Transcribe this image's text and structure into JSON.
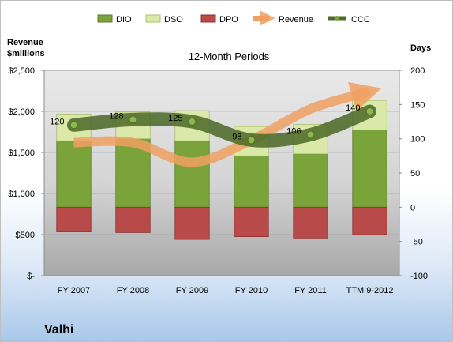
{
  "company_name": "Valhi",
  "chart_data": {
    "type": "bar",
    "title": "12-Month Periods",
    "categories": [
      "FY 2007",
      "FY 2008",
      "FY 2009",
      "FY 2010",
      "FY 2011",
      "TTM 9-2012"
    ],
    "left_axis": {
      "label_line1": "Revenue",
      "label_line2": "$millions",
      "range": [
        0,
        2500
      ],
      "ticks": [
        0,
        500,
        1000,
        1500,
        2000,
        2500
      ],
      "tick_labels": [
        "$-",
        "$500",
        "$1,000",
        "$1,500",
        "$2,000",
        "$2,500"
      ]
    },
    "right_axis": {
      "label": "Days",
      "range": [
        -100,
        200
      ],
      "ticks": [
        -100,
        -50,
        0,
        50,
        100,
        150,
        200
      ],
      "tick_labels": [
        "-100",
        "-50",
        "0",
        "50",
        "100",
        "150",
        "200"
      ]
    },
    "legend": {
      "placement": "top",
      "entries": [
        "DIO",
        "DSO",
        "DPO",
        "Revenue",
        "CCC"
      ]
    },
    "series": [
      {
        "name": "DIO",
        "axis": "right",
        "kind": "stacked-bar",
        "color": "#7aa33a",
        "values": [
          97,
          100,
          97,
          75,
          78,
          113
        ]
      },
      {
        "name": "DSO",
        "axis": "right",
        "kind": "stacked-bar",
        "color": "#dbe9a8",
        "values": [
          39,
          39,
          44,
          43,
          43,
          43
        ]
      },
      {
        "name": "DPO",
        "axis": "right",
        "kind": "negative-bar",
        "color": "#b84a49",
        "values": [
          -36,
          -37,
          -47,
          -43,
          -45,
          -40
        ]
      },
      {
        "name": "Revenue",
        "axis": "left",
        "kind": "line",
        "color": "#f0a060",
        "values": [
          1620,
          1620,
          1380,
          1650,
          2030,
          2240
        ]
      },
      {
        "name": "CCC",
        "axis": "right",
        "kind": "line",
        "color": "#4f6b2a",
        "values": [
          120,
          128,
          125,
          98,
          106,
          140
        ],
        "data_labels": [
          "120",
          "128",
          "125",
          "98",
          "106",
          "140"
        ]
      }
    ],
    "grid": true
  }
}
